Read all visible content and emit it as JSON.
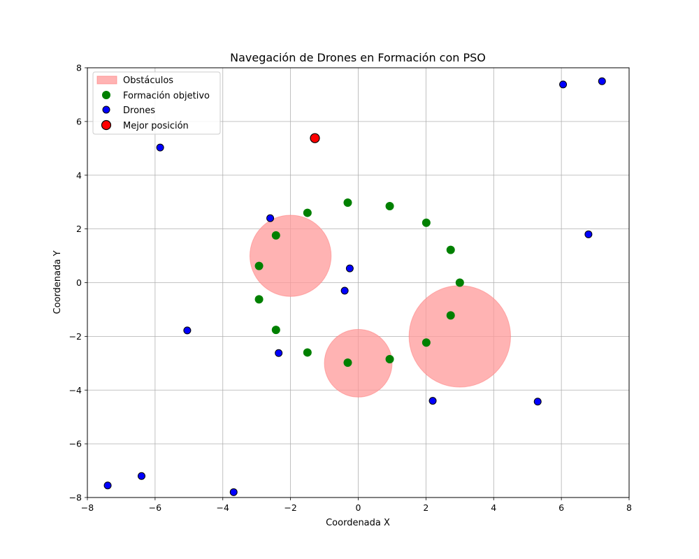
{
  "chart_data": {
    "type": "scatter",
    "title": "Navegación de Drones en Formación con PSO",
    "xlabel": "Coordenada X",
    "ylabel": "Coordenada Y",
    "xlim": [
      -8,
      8
    ],
    "ylim": [
      -8,
      8
    ],
    "xticks": [
      -8,
      -6,
      -4,
      -2,
      0,
      2,
      4,
      6,
      8
    ],
    "yticks": [
      -8,
      -6,
      -4,
      -2,
      0,
      2,
      4,
      6,
      8
    ],
    "grid": true,
    "legend": {
      "position": "top-left",
      "entries": [
        "Obstáculos",
        "Formación objetivo",
        "Drones",
        "Mejor posición"
      ]
    },
    "obstacles": {
      "name": "Obstáculos",
      "color": "#ff9999",
      "circles": [
        {
          "cx": -2,
          "cy": 1,
          "r": 1.2
        },
        {
          "cx": 0,
          "cy": -3,
          "r": 1.0
        },
        {
          "cx": 3,
          "cy": -2,
          "r": 1.5
        }
      ]
    },
    "series": [
      {
        "name": "Formación objetivo",
        "color": "#008000",
        "points": [
          [
            3.0,
            0.0
          ],
          [
            2.73,
            1.22
          ],
          [
            2.01,
            2.23
          ],
          [
            0.93,
            2.85
          ],
          [
            -0.31,
            2.98
          ],
          [
            -1.5,
            2.6
          ],
          [
            -2.43,
            1.76
          ],
          [
            -2.93,
            0.62
          ],
          [
            -2.93,
            -0.62
          ],
          [
            -2.43,
            -1.76
          ],
          [
            -1.5,
            -2.6
          ],
          [
            -0.31,
            -2.98
          ],
          [
            0.93,
            -2.85
          ],
          [
            2.01,
            -2.23
          ],
          [
            2.73,
            -1.22
          ]
        ]
      },
      {
        "name": "Drones",
        "color": "#0000ff",
        "points": [
          [
            -5.85,
            5.03
          ],
          [
            -2.6,
            2.4
          ],
          [
            -0.25,
            0.53
          ],
          [
            -0.4,
            -0.3
          ],
          [
            -5.05,
            -1.78
          ],
          [
            -2.35,
            -2.62
          ],
          [
            2.2,
            -4.4
          ],
          [
            5.3,
            -4.43
          ],
          [
            6.05,
            7.38
          ],
          [
            7.2,
            7.5
          ],
          [
            6.8,
            1.8
          ],
          [
            -6.4,
            -7.2
          ],
          [
            -7.4,
            -7.55
          ],
          [
            -3.68,
            -7.8
          ]
        ]
      },
      {
        "name": "Mejor posición",
        "color": "#ff0000",
        "points": [
          [
            -1.28,
            5.38
          ]
        ]
      }
    ]
  }
}
